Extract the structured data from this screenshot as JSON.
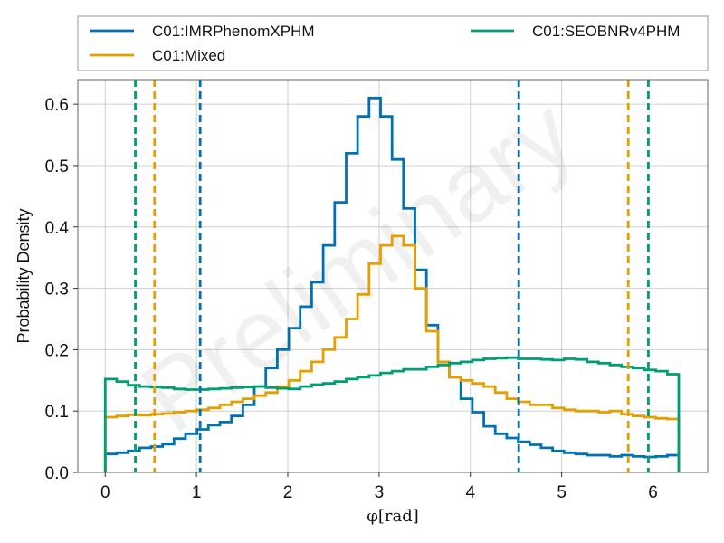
{
  "chart_data": {
    "type": "step",
    "xlabel": "φ[rad]",
    "ylabel": "Probability Density",
    "watermark": "Preliminary",
    "xlim": [
      -0.3,
      6.6
    ],
    "ylim": [
      0,
      0.64
    ],
    "xticks": [
      0,
      1,
      2,
      3,
      4,
      5,
      6
    ],
    "yticks": [
      0.0,
      0.1,
      0.2,
      0.3,
      0.4,
      0.5,
      0.6
    ],
    "ytick_labels": [
      "0.0",
      "0.1",
      "0.2",
      "0.3",
      "0.4",
      "0.5",
      "0.6"
    ],
    "grid": true,
    "legend_placement": "above plot, two columns",
    "bins": 50,
    "bin_range": [
      0,
      6.2832
    ],
    "series": [
      {
        "name": "C01:IMRPhenomXPHM",
        "color": "#0072b2",
        "values": [
          0.03,
          0.032,
          0.035,
          0.04,
          0.042,
          0.046,
          0.055,
          0.063,
          0.07,
          0.077,
          0.082,
          0.092,
          0.11,
          0.14,
          0.17,
          0.2,
          0.235,
          0.27,
          0.31,
          0.37,
          0.44,
          0.52,
          0.58,
          0.61,
          0.58,
          0.51,
          0.43,
          0.33,
          0.24,
          0.18,
          0.155,
          0.12,
          0.098,
          0.075,
          0.063,
          0.056,
          0.05,
          0.045,
          0.04,
          0.035,
          0.032,
          0.03,
          0.028,
          0.028,
          0.026,
          0.028,
          0.026,
          0.025,
          0.026,
          0.028
        ],
        "credible_interval": [
          1.04,
          4.53
        ]
      },
      {
        "name": "C01:Mixed",
        "color": "#e69f00",
        "values": [
          0.09,
          0.092,
          0.094,
          0.093,
          0.095,
          0.096,
          0.098,
          0.1,
          0.102,
          0.105,
          0.11,
          0.115,
          0.12,
          0.125,
          0.13,
          0.14,
          0.15,
          0.165,
          0.18,
          0.2,
          0.22,
          0.25,
          0.29,
          0.34,
          0.37,
          0.385,
          0.37,
          0.3,
          0.23,
          0.18,
          0.155,
          0.15,
          0.145,
          0.14,
          0.13,
          0.12,
          0.115,
          0.11,
          0.11,
          0.105,
          0.102,
          0.1,
          0.1,
          0.098,
          0.1,
          0.095,
          0.092,
          0.09,
          0.088,
          0.087
        ],
        "credible_interval": [
          0.54,
          5.73
        ]
      },
      {
        "name": "C01:SEOBNRv4PHM",
        "color": "#009e73",
        "values": [
          0.152,
          0.148,
          0.142,
          0.14,
          0.139,
          0.138,
          0.136,
          0.135,
          0.135,
          0.136,
          0.137,
          0.138,
          0.139,
          0.14,
          0.138,
          0.137,
          0.136,
          0.14,
          0.143,
          0.145,
          0.148,
          0.152,
          0.155,
          0.158,
          0.162,
          0.165,
          0.168,
          0.168,
          0.172,
          0.175,
          0.178,
          0.18,
          0.183,
          0.185,
          0.186,
          0.187,
          0.185,
          0.185,
          0.184,
          0.183,
          0.185,
          0.184,
          0.18,
          0.178,
          0.175,
          0.172,
          0.17,
          0.167,
          0.165,
          0.16
        ],
        "credible_interval": [
          0.33,
          5.95
        ]
      }
    ]
  }
}
